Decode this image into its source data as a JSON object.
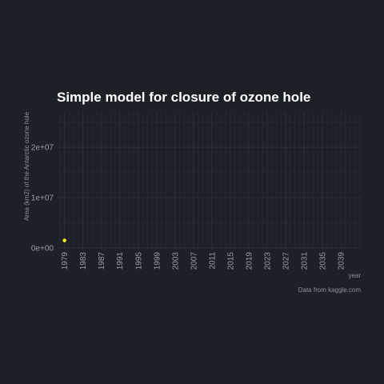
{
  "chart_data": {
    "type": "scatter",
    "title": "Simple model for closure of ozone hole",
    "xlabel": "year",
    "ylabel": "Area (km2) of the Antarctic ozone hole",
    "caption": "Data from kaggle.com",
    "xlim": [
      1977.5,
      2043.5
    ],
    "ylim": [
      0,
      27000000
    ],
    "x_ticks": [
      1979,
      1983,
      1987,
      1991,
      1995,
      1999,
      2003,
      2007,
      2011,
      2015,
      2019,
      2023,
      2027,
      2031,
      2035,
      2039
    ],
    "x_minor_step": 1,
    "y_ticks": [
      {
        "value": 0,
        "label": "0e+00"
      },
      {
        "value": 10000000,
        "label": "1e+07"
      },
      {
        "value": 20000000,
        "label": "2e+07"
      }
    ],
    "y_minor": [
      5000000,
      15000000,
      25000000
    ],
    "grid": true,
    "legend": "none",
    "series": [
      {
        "x": [
          1979
        ],
        "y": [
          1500000
        ]
      }
    ],
    "colors": {
      "background": "#1e2028",
      "grid": "#2c2f38",
      "point": "#f5f51e",
      "title": "#ffffff",
      "text": "#9a9ca3"
    }
  }
}
